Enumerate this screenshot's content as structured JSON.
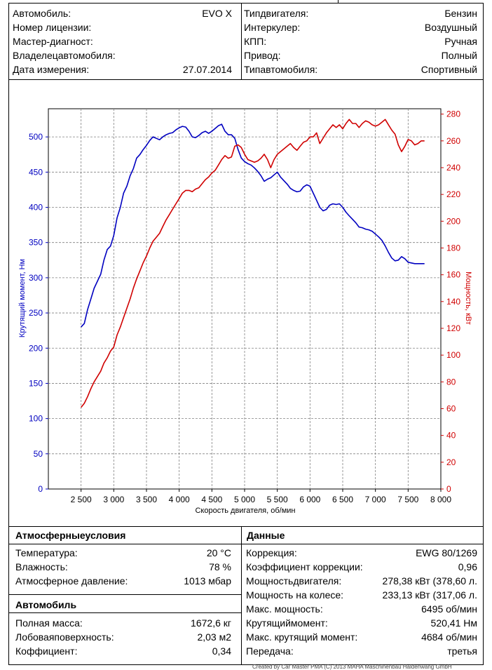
{
  "header": {
    "left": [
      {
        "label": "Автомобиль:",
        "value": "EVO X"
      },
      {
        "label": "Номер лицензии:",
        "value": ""
      },
      {
        "label": "Мастер-диагност:",
        "value": ""
      },
      {
        "label": "Владелецавтомобиля:",
        "value": ""
      },
      {
        "label": "Дата измерения:",
        "value": "27.07.2014"
      }
    ],
    "right": [
      {
        "label": "Типдвигателя:",
        "value": "Бензин"
      },
      {
        "label": "Интеркулер:",
        "value": "Воздушный"
      },
      {
        "label": "КПП:",
        "value": "Ручная"
      },
      {
        "label": "Привод:",
        "value": "Полный"
      },
      {
        "label": "Типавтомобиля:",
        "value": "Спортивный"
      }
    ]
  },
  "chart_data": {
    "type": "line",
    "xlabel": "Скорость двигателя, об/мин",
    "ylabel_left": "Крутящий момент, Нм",
    "ylabel_right": "Мощность, кВт",
    "xlim": [
      2000,
      8000
    ],
    "ylim_left": [
      0,
      540
    ],
    "ylim_right": [
      0,
      284
    ],
    "x_ticks": [
      "2 500",
      "3 000",
      "3 500",
      "4 000",
      "4 500",
      "5 000",
      "5 500",
      "6 000",
      "6 500",
      "7 000",
      "7 500",
      "8 000"
    ],
    "y_left_ticks": [
      "0",
      "50",
      "100",
      "150",
      "200",
      "250",
      "300",
      "350",
      "400",
      "450",
      "500"
    ],
    "y_right_ticks": [
      "0",
      "20",
      "40",
      "60",
      "80",
      "100",
      "120",
      "140",
      "160",
      "180",
      "200",
      "220",
      "240",
      "260",
      "280"
    ],
    "grid": true,
    "colors": {
      "torque": "#0000c0",
      "power": "#d00000"
    },
    "series": [
      {
        "name": "Крутящий момент",
        "axis": "left",
        "x": [
          2500,
          2550,
          2600,
          2650,
          2700,
          2750,
          2800,
          2850,
          2900,
          2950,
          3000,
          3050,
          3100,
          3150,
          3200,
          3250,
          3300,
          3350,
          3400,
          3450,
          3500,
          3550,
          3600,
          3650,
          3700,
          3750,
          3800,
          3850,
          3900,
          3950,
          4000,
          4050,
          4100,
          4150,
          4200,
          4250,
          4300,
          4350,
          4400,
          4450,
          4500,
          4550,
          4600,
          4650,
          4700,
          4750,
          4800,
          4850,
          4900,
          4950,
          5000,
          5050,
          5100,
          5150,
          5200,
          5250,
          5300,
          5350,
          5400,
          5450,
          5500,
          5550,
          5600,
          5650,
          5700,
          5750,
          5800,
          5850,
          5900,
          5950,
          6000,
          6050,
          6100,
          6150,
          6200,
          6250,
          6300,
          6350,
          6400,
          6450,
          6500,
          6550,
          6600,
          6650,
          6700,
          6750,
          6800,
          6850,
          6900,
          6950,
          7000,
          7050,
          7100,
          7150,
          7200,
          7250,
          7300,
          7350,
          7400,
          7450,
          7500,
          7550,
          7600,
          7650,
          7700,
          7750
        ],
        "values": [
          230,
          235,
          255,
          270,
          285,
          295,
          305,
          325,
          340,
          345,
          360,
          385,
          400,
          420,
          430,
          445,
          455,
          470,
          475,
          482,
          488,
          495,
          500,
          498,
          496,
          500,
          503,
          505,
          506,
          510,
          513,
          515,
          514,
          508,
          500,
          499,
          502,
          506,
          508,
          505,
          508,
          512,
          516,
          518,
          508,
          503,
          503,
          498,
          482,
          470,
          465,
          462,
          460,
          456,
          451,
          445,
          437,
          440,
          442,
          446,
          450,
          443,
          438,
          433,
          427,
          424,
          422,
          423,
          429,
          432,
          430,
          420,
          410,
          400,
          395,
          397,
          403,
          405,
          404,
          405,
          400,
          393,
          388,
          383,
          378,
          372,
          371,
          369,
          368,
          366,
          362,
          358,
          353,
          345,
          336,
          328,
          324,
          325,
          330,
          327,
          322,
          321,
          320,
          320,
          320,
          320
        ]
      },
      {
        "name": "Мощность",
        "axis": "right",
        "x": [
          2500,
          2550,
          2600,
          2650,
          2700,
          2750,
          2800,
          2850,
          2900,
          2950,
          3000,
          3050,
          3100,
          3150,
          3200,
          3250,
          3300,
          3350,
          3400,
          3450,
          3500,
          3550,
          3600,
          3650,
          3700,
          3750,
          3800,
          3850,
          3900,
          3950,
          4000,
          4050,
          4100,
          4150,
          4200,
          4250,
          4300,
          4350,
          4400,
          4450,
          4500,
          4550,
          4600,
          4650,
          4700,
          4750,
          4800,
          4850,
          4900,
          4950,
          5000,
          5050,
          5100,
          5150,
          5200,
          5250,
          5300,
          5350,
          5400,
          5450,
          5500,
          5550,
          5600,
          5650,
          5700,
          5750,
          5800,
          5850,
          5900,
          5950,
          6000,
          6050,
          6100,
          6150,
          6200,
          6250,
          6300,
          6350,
          6400,
          6450,
          6500,
          6550,
          6600,
          6650,
          6700,
          6750,
          6800,
          6850,
          6900,
          6950,
          7000,
          7050,
          7100,
          7150,
          7200,
          7250,
          7300,
          7350,
          7400,
          7450,
          7500,
          7550,
          7600,
          7650,
          7700,
          7750
        ],
        "values": [
          61,
          64,
          69,
          75,
          80,
          84,
          88,
          94,
          98,
          103,
          106,
          115,
          121,
          128,
          135,
          142,
          150,
          157,
          163,
          169,
          174,
          180,
          185,
          188,
          191,
          196,
          201,
          205,
          209,
          213,
          217,
          221,
          223,
          223,
          222,
          224,
          225,
          228,
          231,
          233,
          236,
          238,
          242,
          246,
          249,
          247,
          248,
          256,
          257,
          255,
          250,
          246,
          245,
          244,
          245,
          247,
          250,
          246,
          240,
          246,
          250,
          252,
          254,
          256,
          258,
          255,
          253,
          256,
          259,
          260,
          263,
          263,
          266,
          258,
          262,
          266,
          269,
          272,
          270,
          272,
          269,
          273,
          276,
          273,
          273,
          270,
          273,
          275,
          274,
          272,
          271,
          272,
          274,
          276,
          272,
          268,
          265,
          257,
          252,
          256,
          261,
          260,
          257,
          258,
          260,
          260
        ]
      }
    ]
  },
  "atmos": {
    "title": "Атмосферныеусловия",
    "rows": [
      {
        "label": "Температура:",
        "value": "20 °C"
      },
      {
        "label": "Влажность:",
        "value": "78 %"
      },
      {
        "label": "Атмосферное давление:",
        "value": "1013 мбар"
      }
    ]
  },
  "car": {
    "title": "Автомобиль",
    "rows": [
      {
        "label": "Полная масса:",
        "value": "1672,6 кг"
      },
      {
        "label": "Лобоваяповерхность:",
        "value": "2,03 м2"
      },
      {
        "label": "Коффициент:",
        "value": "0,34"
      }
    ]
  },
  "results": {
    "title": "Данные",
    "rows": [
      {
        "label": "Коррекция:",
        "value": "EWG 80/1269"
      },
      {
        "label": "Коэффициент коррекции:",
        "value": "0,96"
      },
      {
        "label": "Мощностьдвигателя:",
        "value": "278,38 кВт (378,60 л."
      },
      {
        "label": "Мощность на колесе:",
        "value": "233,13 кВт (317,06 л."
      },
      {
        "label": "Макс. мощность:",
        "value": "6495 об/мин"
      },
      {
        "label": "Крутящиймомент:",
        "value": "520,41 Нм"
      },
      {
        "label": "Макс. крутящий момент:",
        "value": "4684 об/мин"
      },
      {
        "label": "Передача:",
        "value": "третья"
      }
    ]
  },
  "footer": {
    "text": "Created by Car Master PMA (C) 2013 MAHA Maschinenbau Haldenwang GmbH"
  }
}
